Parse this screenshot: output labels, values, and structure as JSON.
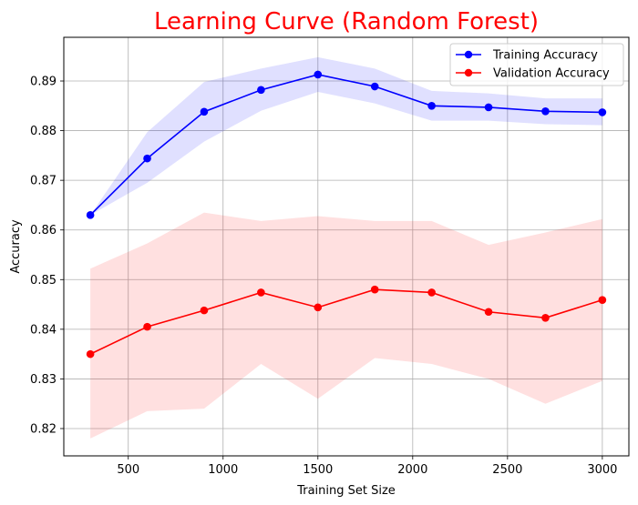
{
  "chart_data": {
    "type": "line",
    "title": "Learning Curve (Random Forest)",
    "title_color": "#ff0000",
    "xlabel": "Training Set Size",
    "ylabel": "Accuracy",
    "xlim": [
      160,
      3140
    ],
    "ylim": [
      0.8145,
      0.8988
    ],
    "xticks": [
      500,
      1000,
      1500,
      2000,
      2500,
      3000
    ],
    "xtick_labels": [
      "500",
      "1000",
      "1500",
      "2000",
      "2500",
      "3000"
    ],
    "yticks": [
      0.82,
      0.83,
      0.84,
      0.85,
      0.86,
      0.87,
      0.88,
      0.89
    ],
    "ytick_labels": [
      "0.82",
      "0.83",
      "0.84",
      "0.85",
      "0.86",
      "0.87",
      "0.88",
      "0.89"
    ],
    "grid": true,
    "legend_position": "top-right",
    "x": [
      300,
      600,
      900,
      1200,
      1500,
      1800,
      2100,
      2400,
      2700,
      3000
    ],
    "series": [
      {
        "name": "Training Accuracy",
        "color": "#0000ff",
        "band_color": "#0000ff",
        "values": [
          0.863,
          0.8744,
          0.8838,
          0.8882,
          0.8913,
          0.8889,
          0.885,
          0.8847,
          0.8839,
          0.8837
        ],
        "band_upper": [
          0.863,
          0.8797,
          0.8898,
          0.8925,
          0.8948,
          0.8925,
          0.888,
          0.8875,
          0.8865,
          0.8865
        ],
        "band_lower": [
          0.863,
          0.8695,
          0.8778,
          0.884,
          0.8878,
          0.8855,
          0.882,
          0.882,
          0.8813,
          0.8811
        ]
      },
      {
        "name": "Validation Accuracy",
        "color": "#ff0000",
        "band_color": "#ff0000",
        "values": [
          0.835,
          0.8405,
          0.8438,
          0.8474,
          0.8444,
          0.848,
          0.8474,
          0.8435,
          0.8423,
          0.8459
        ],
        "band_upper": [
          0.8522,
          0.8573,
          0.8635,
          0.8618,
          0.8628,
          0.8618,
          0.8618,
          0.857,
          0.8595,
          0.8622
        ],
        "band_lower": [
          0.818,
          0.8235,
          0.824,
          0.833,
          0.826,
          0.8342,
          0.833,
          0.83,
          0.825,
          0.8296
        ]
      }
    ]
  }
}
